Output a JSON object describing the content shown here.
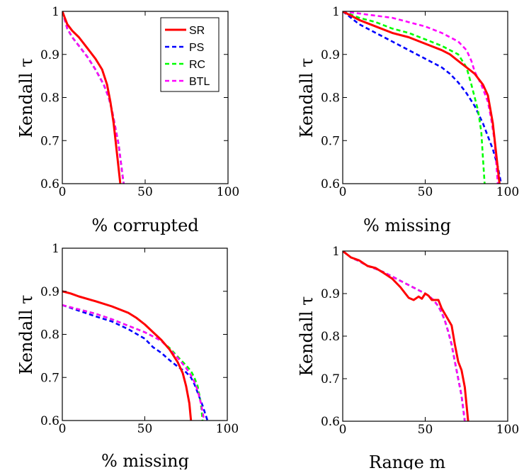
{
  "series_styles": [
    {
      "name": "SR",
      "color": "#ff0000",
      "dash": "",
      "width": 3
    },
    {
      "name": "PS",
      "color": "#0000ff",
      "dash": "6,4",
      "width": 2.6
    },
    {
      "name": "RC",
      "color": "#00ff00",
      "dash": "6,4",
      "width": 2.6
    },
    {
      "name": "BTL",
      "color": "#ff00ff",
      "dash": "6,4",
      "width": 2.6
    }
  ],
  "chart_data": [
    {
      "type": "line",
      "xlabel": "% corrupted",
      "ylabel": "Kendall τ",
      "xlim": [
        0,
        100
      ],
      "ylim": [
        0.6,
        1
      ],
      "xticks": [
        "0",
        "50",
        "100"
      ],
      "yticks": [
        "0.6",
        "0.7",
        "0.8",
        "0.9",
        "1"
      ],
      "legend": {
        "position": "top-right",
        "entries": [
          "SR",
          "PS",
          "RC",
          "BTL"
        ]
      },
      "series": [
        {
          "name": "SR",
          "x": [
            0,
            3,
            6,
            10,
            15,
            20,
            24,
            27,
            29,
            31,
            33,
            35
          ],
          "y": [
            1.0,
            0.97,
            0.955,
            0.94,
            0.915,
            0.89,
            0.865,
            0.83,
            0.79,
            0.74,
            0.67,
            0.6
          ]
        },
        {
          "name": "PS",
          "x": [
            0,
            3,
            6,
            10,
            15,
            20,
            25,
            28,
            30,
            32,
            34,
            36,
            37
          ],
          "y": [
            1.0,
            0.96,
            0.94,
            0.92,
            0.895,
            0.865,
            0.83,
            0.8,
            0.77,
            0.73,
            0.69,
            0.63,
            0.6
          ]
        },
        {
          "name": "RC",
          "x": [
            0,
            3,
            6,
            10,
            15,
            20,
            25,
            28,
            30,
            32,
            34,
            36,
            37
          ],
          "y": [
            1.0,
            0.96,
            0.94,
            0.92,
            0.895,
            0.865,
            0.83,
            0.8,
            0.77,
            0.73,
            0.69,
            0.63,
            0.6
          ]
        },
        {
          "name": "BTL",
          "x": [
            0,
            3,
            6,
            10,
            15,
            20,
            25,
            28,
            30,
            32,
            34,
            36,
            37
          ],
          "y": [
            1.0,
            0.96,
            0.94,
            0.92,
            0.895,
            0.865,
            0.83,
            0.8,
            0.77,
            0.73,
            0.69,
            0.63,
            0.6
          ]
        }
      ]
    },
    {
      "type": "line",
      "xlabel": "% missing",
      "ylabel": "Kendall τ",
      "xlim": [
        0,
        100
      ],
      "ylim": [
        0.6,
        1
      ],
      "xticks": [
        "0",
        "50",
        "100"
      ],
      "yticks": [
        "0.6",
        "0.7",
        "0.8",
        "0.9",
        "1"
      ],
      "series": [
        {
          "name": "SR",
          "x": [
            0,
            10,
            20,
            30,
            40,
            50,
            60,
            65,
            70,
            75,
            80,
            85,
            88,
            91,
            93,
            95
          ],
          "y": [
            1.0,
            0.98,
            0.965,
            0.95,
            0.94,
            0.925,
            0.91,
            0.9,
            0.885,
            0.87,
            0.855,
            0.83,
            0.805,
            0.74,
            0.67,
            0.6
          ]
        },
        {
          "name": "PS",
          "x": [
            0,
            10,
            20,
            30,
            40,
            50,
            60,
            65,
            70,
            75,
            80,
            85,
            88,
            91,
            94,
            96
          ],
          "y": [
            1.0,
            0.97,
            0.95,
            0.93,
            0.91,
            0.89,
            0.87,
            0.855,
            0.835,
            0.81,
            0.78,
            0.74,
            0.71,
            0.68,
            0.64,
            0.6
          ]
        },
        {
          "name": "RC",
          "x": [
            0,
            10,
            20,
            30,
            40,
            50,
            60,
            70,
            75,
            78,
            80,
            82,
            84,
            85,
            86
          ],
          "y": [
            1.0,
            0.985,
            0.975,
            0.96,
            0.95,
            0.935,
            0.92,
            0.9,
            0.87,
            0.83,
            0.8,
            0.77,
            0.72,
            0.66,
            0.6
          ]
        },
        {
          "name": "BTL",
          "x": [
            0,
            10,
            20,
            30,
            40,
            50,
            60,
            70,
            75,
            78,
            80,
            82,
            84,
            86,
            88,
            90,
            92,
            94
          ],
          "y": [
            1.0,
            0.995,
            0.99,
            0.985,
            0.975,
            0.965,
            0.95,
            0.93,
            0.91,
            0.885,
            0.86,
            0.845,
            0.83,
            0.81,
            0.79,
            0.75,
            0.7,
            0.6
          ]
        }
      ]
    },
    {
      "type": "line",
      "xlabel": "% missing",
      "ylabel": "Kendall τ",
      "xlim": [
        0,
        100
      ],
      "ylim": [
        0.6,
        1
      ],
      "xticks": [
        "0",
        "50",
        "100"
      ],
      "yticks": [
        "0.6",
        "0.7",
        "0.8",
        "0.9",
        "1"
      ],
      "series": [
        {
          "name": "SR",
          "x": [
            0,
            5,
            10,
            20,
            30,
            40,
            45,
            50,
            55,
            60,
            65,
            70,
            73,
            75,
            77,
            78
          ],
          "y": [
            0.9,
            0.895,
            0.888,
            0.877,
            0.865,
            0.85,
            0.838,
            0.823,
            0.805,
            0.787,
            0.765,
            0.735,
            0.71,
            0.68,
            0.64,
            0.6
          ]
        },
        {
          "name": "PS",
          "x": [
            0,
            10,
            20,
            30,
            40,
            50,
            55,
            60,
            65,
            70,
            75,
            78,
            80,
            82,
            85,
            88
          ],
          "y": [
            0.868,
            0.855,
            0.842,
            0.83,
            0.812,
            0.79,
            0.77,
            0.757,
            0.74,
            0.725,
            0.712,
            0.7,
            0.685,
            0.665,
            0.635,
            0.6
          ]
        },
        {
          "name": "RC",
          "x": [
            0,
            10,
            20,
            30,
            40,
            50,
            55,
            60,
            65,
            70,
            75,
            78,
            80,
            82,
            84,
            85
          ],
          "y": [
            0.868,
            0.858,
            0.848,
            0.835,
            0.82,
            0.805,
            0.795,
            0.785,
            0.768,
            0.748,
            0.728,
            0.715,
            0.7,
            0.68,
            0.64,
            0.6
          ]
        },
        {
          "name": "BTL",
          "x": [
            0,
            10,
            20,
            30,
            40,
            50,
            55,
            60,
            65,
            70,
            75,
            78,
            80,
            82,
            84,
            86
          ],
          "y": [
            0.868,
            0.858,
            0.848,
            0.835,
            0.82,
            0.805,
            0.795,
            0.785,
            0.765,
            0.745,
            0.722,
            0.705,
            0.69,
            0.67,
            0.64,
            0.6
          ]
        }
      ]
    },
    {
      "type": "line",
      "xlabel": "Range m",
      "ylabel": "Kendall τ",
      "xlim": [
        0,
        100
      ],
      "ylim": [
        0.6,
        1
      ],
      "xticks": [
        "0",
        "50",
        "100"
      ],
      "yticks": [
        "0.6",
        "0.7",
        "0.8",
        "0.9",
        "1"
      ],
      "series": [
        {
          "name": "SR",
          "x": [
            0,
            5,
            10,
            15,
            20,
            25,
            30,
            35,
            38,
            40,
            43,
            46,
            48,
            50,
            52,
            54,
            56,
            58,
            60,
            63,
            66,
            68,
            70,
            72,
            74,
            76
          ],
          "y": [
            1.0,
            0.985,
            0.978,
            0.965,
            0.96,
            0.948,
            0.935,
            0.915,
            0.9,
            0.89,
            0.885,
            0.893,
            0.888,
            0.9,
            0.895,
            0.885,
            0.885,
            0.885,
            0.865,
            0.845,
            0.825,
            0.78,
            0.74,
            0.72,
            0.68,
            0.6
          ]
        },
        {
          "name": "PS",
          "x": [
            0,
            5,
            10,
            15,
            20,
            25,
            30,
            35,
            40,
            45,
            50,
            52,
            55,
            58,
            60,
            62,
            64,
            66,
            68,
            70,
            72,
            74
          ],
          "y": [
            1.0,
            0.985,
            0.976,
            0.965,
            0.958,
            0.95,
            0.94,
            0.93,
            0.92,
            0.91,
            0.9,
            0.895,
            0.885,
            0.87,
            0.855,
            0.835,
            0.81,
            0.78,
            0.74,
            0.7,
            0.66,
            0.6
          ]
        },
        {
          "name": "RC",
          "x": [
            0,
            5,
            10,
            15,
            20,
            25,
            30,
            35,
            40,
            45,
            50,
            52,
            55,
            58,
            60,
            62,
            64,
            66,
            68,
            70,
            72,
            74
          ],
          "y": [
            1.0,
            0.985,
            0.976,
            0.965,
            0.958,
            0.95,
            0.94,
            0.93,
            0.92,
            0.91,
            0.9,
            0.895,
            0.885,
            0.87,
            0.855,
            0.835,
            0.81,
            0.78,
            0.74,
            0.7,
            0.66,
            0.6
          ]
        },
        {
          "name": "BTL",
          "x": [
            0,
            5,
            10,
            15,
            20,
            25,
            30,
            35,
            40,
            45,
            50,
            52,
            55,
            58,
            60,
            62,
            64,
            66,
            68,
            70,
            72,
            74
          ],
          "y": [
            1.0,
            0.985,
            0.976,
            0.965,
            0.958,
            0.95,
            0.94,
            0.93,
            0.92,
            0.91,
            0.9,
            0.895,
            0.885,
            0.87,
            0.855,
            0.835,
            0.81,
            0.78,
            0.74,
            0.7,
            0.66,
            0.6
          ]
        }
      ]
    }
  ]
}
